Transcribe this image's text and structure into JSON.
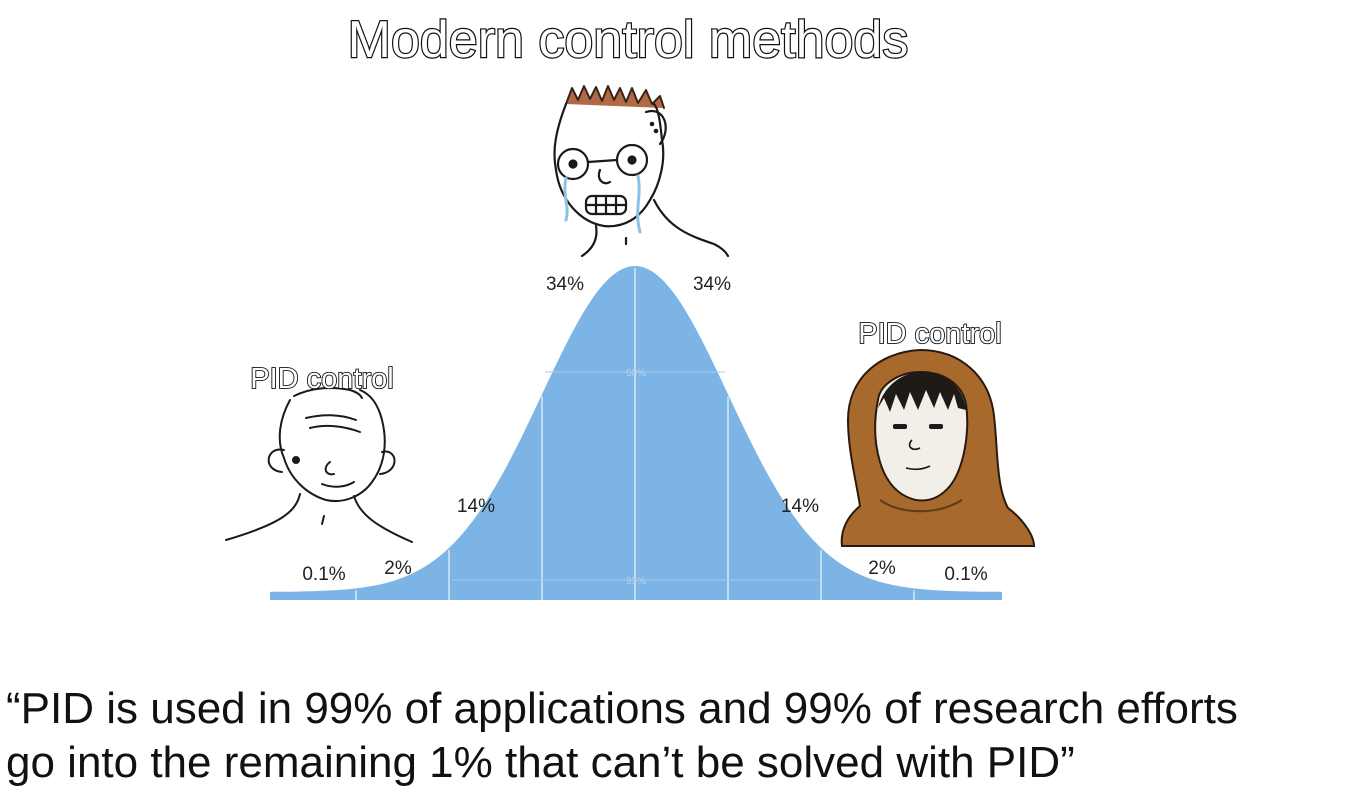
{
  "meme": {
    "top_label": "Modern control methods",
    "left_label": "PID control",
    "right_label": "PID control"
  },
  "distribution": {
    "bands": [
      {
        "label": "0.1%"
      },
      {
        "label": "2%"
      },
      {
        "label": "14%"
      },
      {
        "label": "34%"
      },
      {
        "label": "34%"
      },
      {
        "label": "14%"
      },
      {
        "label": "2%"
      },
      {
        "label": "0.1%"
      }
    ],
    "inner_labels": {
      "one_sigma": "68%",
      "two_sigma": "95%"
    },
    "colors": {
      "fill": "#7db4e6",
      "divider": "#d8e8f6",
      "text": "#222222"
    }
  },
  "caption": {
    "line1": "“PID is used in 99% of applications and 99% of research efforts",
    "line2": "go into the remaining 1% that can’t be solved with PID”"
  },
  "characters": {
    "left": "wojak-face",
    "center": "crying-nerd-with-glasses",
    "right": "hooded-monk"
  }
}
